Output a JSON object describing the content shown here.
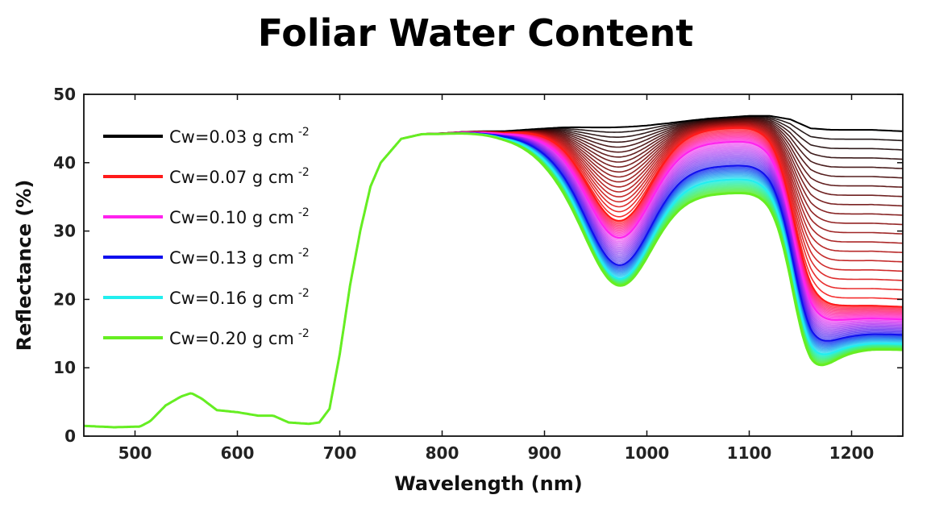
{
  "chart_data": {
    "type": "line",
    "title": "Foliar Water Content",
    "xlabel": "Wavelength (nm)",
    "ylabel": "Reflectance (%)",
    "xlim": [
      450,
      1250
    ],
    "ylim": [
      0,
      50
    ],
    "xticks": [
      "500",
      "600",
      "700",
      "800",
      "900",
      "1000",
      "1100",
      "1200"
    ],
    "yticks": [
      "0",
      "10",
      "20",
      "30",
      "40",
      "50"
    ],
    "grid": false,
    "legend_position": "top-left",
    "legend": [
      {
        "label": "Cw=0.03 g cm",
        "sup": "-2",
        "color": "#000000"
      },
      {
        "label": "Cw=0.07 g cm",
        "sup": "-2",
        "color": "#ff1a1a"
      },
      {
        "label": "Cw=0.10 g cm",
        "sup": "-2",
        "color": "#ff22ee"
      },
      {
        "label": "Cw=0.13 g cm",
        "sup": "-2",
        "color": "#1010ee"
      },
      {
        "label": "Cw=0.16 g cm",
        "sup": "-2",
        "color": "#22eeee"
      },
      {
        "label": "Cw=0.20 g cm",
        "sup": "-2",
        "color": "#66ee22"
      }
    ],
    "base_curve": {
      "x": [
        450,
        480,
        505,
        515,
        530,
        545,
        555,
        565,
        580,
        600,
        620,
        635,
        650,
        670,
        680,
        690,
        700,
        710,
        720,
        730,
        740,
        760,
        780,
        800,
        820,
        840,
        860,
        880,
        900,
        920,
        940,
        960,
        980,
        1000,
        1020,
        1040,
        1060,
        1080,
        1100,
        1120,
        1140,
        1160,
        1180,
        1200,
        1220,
        1250
      ],
      "y": [
        1.5,
        1.3,
        1.4,
        2.2,
        4.5,
        5.8,
        6.3,
        5.5,
        3.8,
        3.5,
        3.0,
        3.0,
        2.0,
        1.8,
        2.0,
        4.0,
        12.0,
        22.0,
        30.0,
        36.5,
        40.0,
        43.5,
        44.2,
        44.3,
        44.5,
        44.6,
        44.6,
        44.8,
        45.0,
        45.2,
        45.3,
        45.4,
        45.5,
        45.6,
        45.8,
        46.1,
        46.4,
        46.6,
        46.8,
        46.8,
        46.3,
        45.0,
        44.8,
        44.8,
        44.8,
        44.6
      ]
    },
    "series": [
      {
        "name": "Cw=0.03 g cm-2",
        "cw": 0.03,
        "color": "#000000",
        "y_at": {
          "975": 45.2,
          "1075": 46.6,
          "1200": 44.8
        }
      },
      {
        "name": "Cw=0.07 g cm-2",
        "cw": 0.07,
        "color": "#ff1a1a",
        "y_at": {
          "975": 31.5,
          "1075": 45.0,
          "1200": 19.0
        }
      },
      {
        "name": "Cw=0.10 g cm-2",
        "cw": 0.1,
        "color": "#ff22ee",
        "y_at": {
          "975": 29.0,
          "1075": 43.0,
          "1200": 17.0
        }
      },
      {
        "name": "Cw=0.13 g cm-2",
        "cw": 0.13,
        "color": "#1010ee",
        "y_at": {
          "975": 25.0,
          "1075": 39.5,
          "1200": 14.5
        }
      },
      {
        "name": "Cw=0.16 g cm-2",
        "cw": 0.16,
        "color": "#22eeee",
        "y_at": {
          "975": 23.0,
          "1075": 37.5,
          "1200": 13.0
        }
      },
      {
        "name": "Cw=0.20 g cm-2",
        "cw": 0.2,
        "color": "#66ee22",
        "y_at": {
          "975": 22.0,
          "1075": 35.5,
          "1200": 12.0
        }
      }
    ]
  }
}
